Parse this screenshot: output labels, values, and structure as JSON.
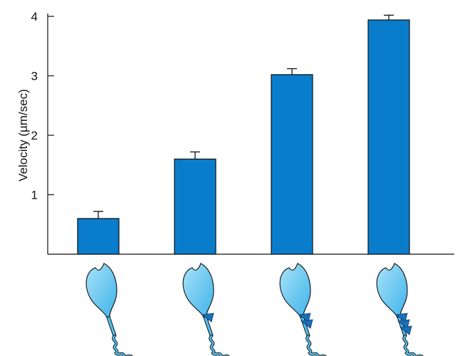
{
  "chart_data": {
    "type": "bar",
    "categories": [
      "",
      "",
      "",
      ""
    ],
    "values": [
      0.6,
      1.6,
      3.02,
      3.94
    ],
    "errors": [
      0.12,
      0.12,
      0.1,
      0.08
    ],
    "title": "",
    "xlabel": "",
    "ylabel": "Velocity (µm/sec)",
    "ylim": [
      0,
      4
    ],
    "yticks": [
      "1",
      "2",
      "3",
      "4"
    ],
    "bar_color": "#0a7ccc",
    "grid": false,
    "legend": "none",
    "x_category_icons": [
      {
        "icon": "myosin-motor-0-light-chains-icon",
        "light_chain_count": 0
      },
      {
        "icon": "myosin-motor-1-light-chain-icon",
        "light_chain_count": 1
      },
      {
        "icon": "myosin-motor-2-light-chains-icon",
        "light_chain_count": 2
      },
      {
        "icon": "myosin-motor-3-light-chains-icon",
        "light_chain_count": 3
      }
    ],
    "icon_colors": {
      "head": "#5cc6f0",
      "head_light": "#a8e2f8",
      "light_chain": "#1a6fb8",
      "tail": "#4fc0ee"
    }
  }
}
